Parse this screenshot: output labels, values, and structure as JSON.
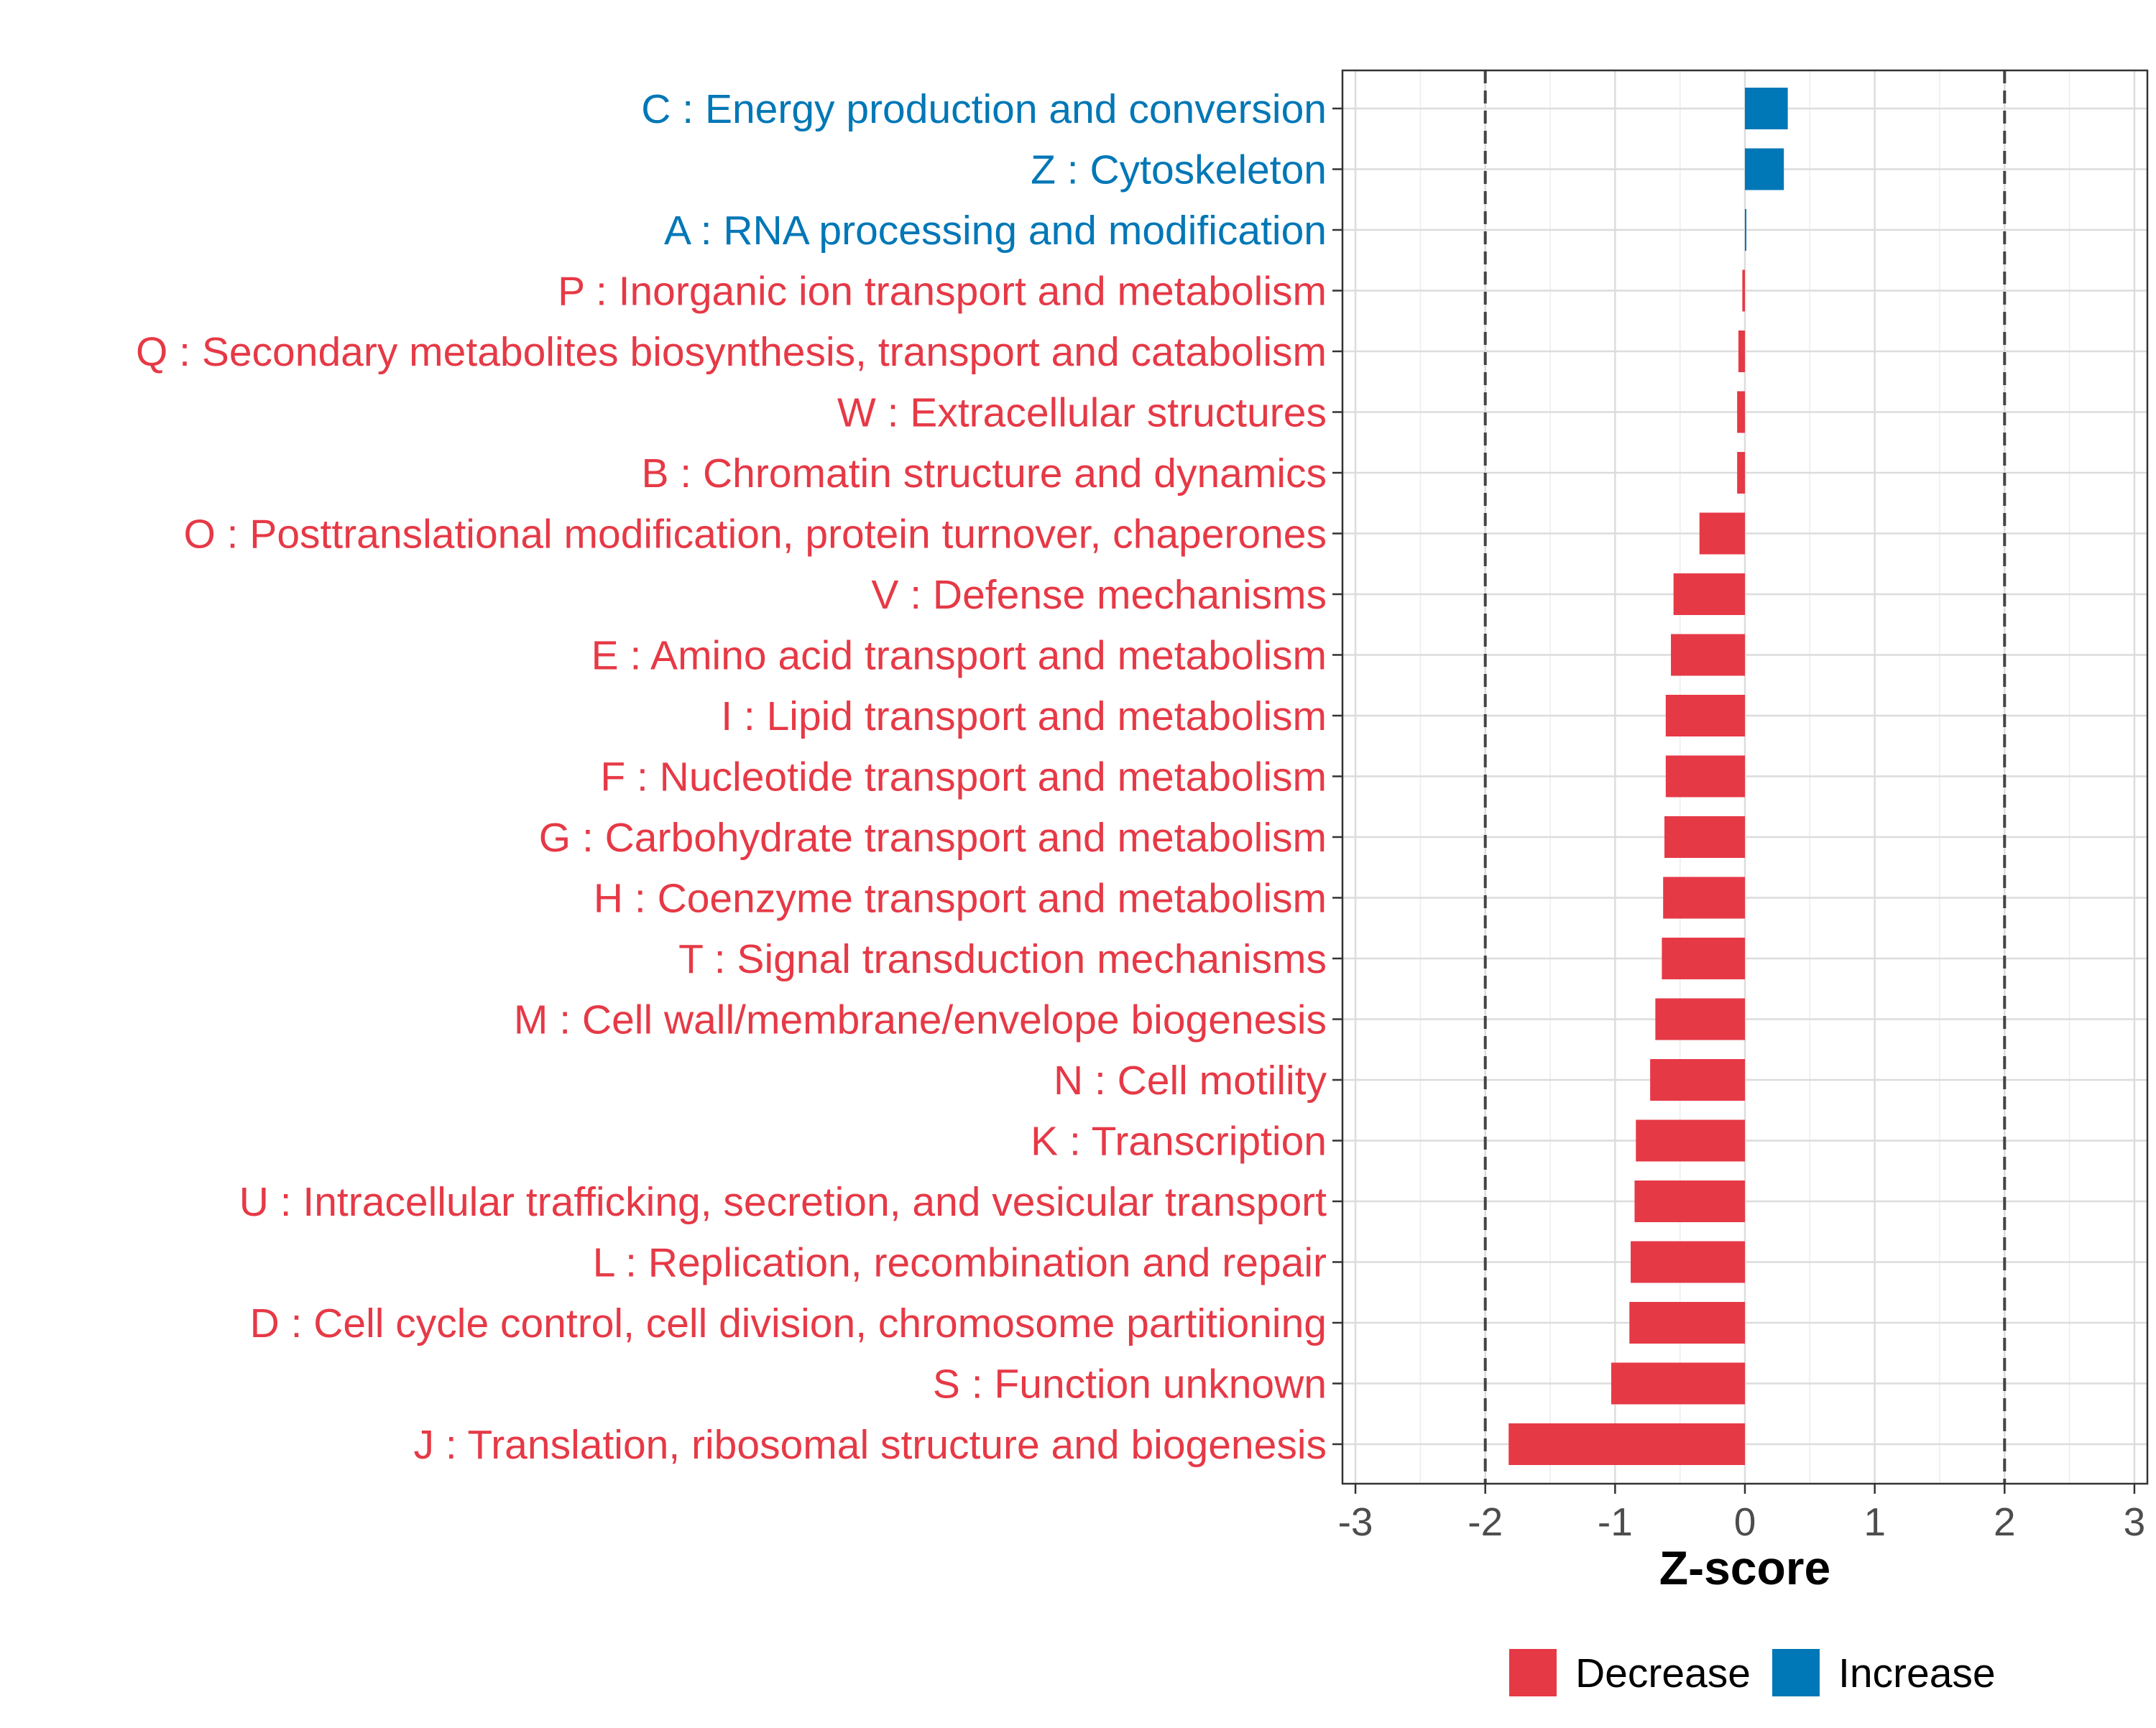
{
  "chart_data": {
    "type": "bar",
    "orientation": "horizontal",
    "xlabel": "Z-score",
    "xlim": [
      -3.1,
      3.1
    ],
    "xticks": [
      -3,
      -2,
      -1,
      0,
      1,
      2,
      3
    ],
    "xtick_labels": [
      "-3",
      "-2",
      "-1",
      "0",
      "1",
      "2",
      "3"
    ],
    "reference_lines": [
      -2,
      2
    ],
    "grid": true,
    "colors": {
      "Decrease": "#E63946",
      "Increase": "#0077B6"
    },
    "categories": [
      "C : Energy production and conversion",
      "Z : Cytoskeleton",
      "A : RNA processing and modification",
      "P : Inorganic ion transport and metabolism",
      "Q : Secondary metabolites biosynthesis, transport and catabolism",
      "W : Extracellular structures",
      "B : Chromatin structure and dynamics",
      "O : Posttranslational modification, protein turnover, chaperones",
      "V : Defense mechanisms",
      "E : Amino acid transport and metabolism",
      "I : Lipid transport and metabolism",
      "F : Nucleotide transport and metabolism",
      "G : Carbohydrate transport and metabolism",
      "H : Coenzyme transport and metabolism",
      "T : Signal transduction mechanisms",
      "M : Cell wall/membrane/envelope biogenesis",
      "N : Cell motility",
      "K : Transcription",
      "U : Intracellular trafficking, secretion, and vesicular transport",
      "L : Replication, recombination and repair",
      "D : Cell cycle control, cell division, chromosome partitioning",
      "S : Function unknown",
      "J : Translation, ribosomal structure and biogenesis"
    ],
    "values": [
      0.33,
      0.3,
      0.01,
      -0.02,
      -0.05,
      -0.06,
      -0.06,
      -0.35,
      -0.55,
      -0.57,
      -0.61,
      -0.61,
      -0.62,
      -0.63,
      -0.64,
      -0.69,
      -0.73,
      -0.84,
      -0.85,
      -0.88,
      -0.89,
      -1.03,
      -1.82
    ],
    "groups": [
      "Increase",
      "Increase",
      "Increase",
      "Decrease",
      "Decrease",
      "Decrease",
      "Decrease",
      "Decrease",
      "Decrease",
      "Decrease",
      "Decrease",
      "Decrease",
      "Decrease",
      "Decrease",
      "Decrease",
      "Decrease",
      "Decrease",
      "Decrease",
      "Decrease",
      "Decrease",
      "Decrease",
      "Decrease",
      "Decrease"
    ],
    "legend": {
      "position": "bottom",
      "entries": [
        {
          "label": "Decrease",
          "color": "#E63946"
        },
        {
          "label": "Increase",
          "color": "#0077B6"
        }
      ]
    }
  }
}
